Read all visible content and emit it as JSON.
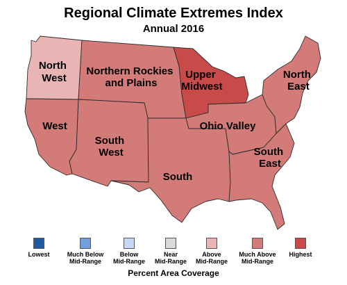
{
  "title": "Regional Climate Extremes Index",
  "subtitle": "Annual 2016",
  "regions": {
    "northwest": {
      "label_line1": "North",
      "label_line2": "West",
      "category": "Above Mid-Range"
    },
    "west": {
      "label": "West",
      "category": "Much Above Mid-Range"
    },
    "northern_rockies": {
      "label_line1": "Northern Rockies",
      "label_line2": "and Plains",
      "category": "Much Above Mid-Range"
    },
    "southwest": {
      "label_line1": "South",
      "label_line2": "West",
      "category": "Much Above Mid-Range"
    },
    "south": {
      "label": "South",
      "category": "Much Above Mid-Range"
    },
    "upper_midwest": {
      "label_line1": "Upper",
      "label_line2": "Midwest",
      "category": "Highest"
    },
    "ohio_valley": {
      "label": "Ohio Valley",
      "category": "Much Above Mid-Range"
    },
    "southeast": {
      "label_line1": "South",
      "label_line2": "East",
      "category": "Much Above Mid-Range"
    },
    "northeast": {
      "label_line1": "North",
      "label_line2": "East",
      "category": "Much Above Mid-Range"
    }
  },
  "legend": {
    "items": [
      {
        "label": "Lowest",
        "color": "#1f5a9e"
      },
      {
        "label": "Much Below\nMid-Range",
        "color": "#6f9fde"
      },
      {
        "label": "Below\nMid-Range",
        "color": "#c6d8f2"
      },
      {
        "label": "Near\nMid-Range",
        "color": "#dadada"
      },
      {
        "label": "Above\nMid-Range",
        "color": "#e8b4b4"
      },
      {
        "label": "Much Above\nMid-Range",
        "color": "#d27b78"
      },
      {
        "label": "Highest",
        "color": "#c94b49"
      }
    ],
    "caption": "Percent Area Coverage"
  }
}
